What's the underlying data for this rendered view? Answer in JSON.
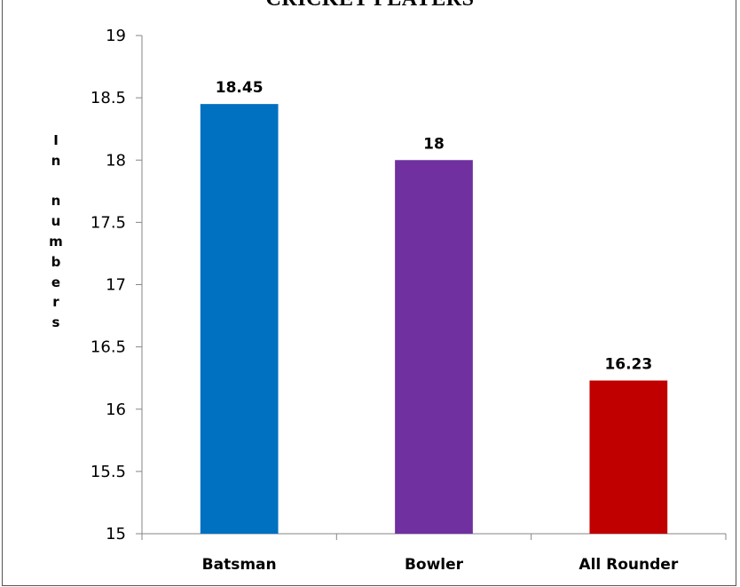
{
  "chart_data": {
    "type": "bar",
    "title": "CRICKET PLAYERS",
    "xlabel": "",
    "ylabel": "In numbers",
    "ylabel_letters": [
      "I",
      "n",
      "",
      "n",
      "u",
      "m",
      "b",
      "e",
      "r",
      "s"
    ],
    "categories": [
      "Batsman",
      "Bowler",
      "All Rounder"
    ],
    "values": [
      18.45,
      18,
      16.23
    ],
    "data_labels": [
      "18.45",
      "18",
      "16.23"
    ],
    "colors": [
      "#0070C0",
      "#7030A0",
      "#C00000"
    ],
    "ylim": [
      15,
      19
    ],
    "yticks": [
      "15",
      "15.5",
      "16",
      "16.5",
      "17",
      "17.5",
      "18",
      "18.5",
      "19"
    ],
    "grid": false,
    "legend": "none"
  }
}
